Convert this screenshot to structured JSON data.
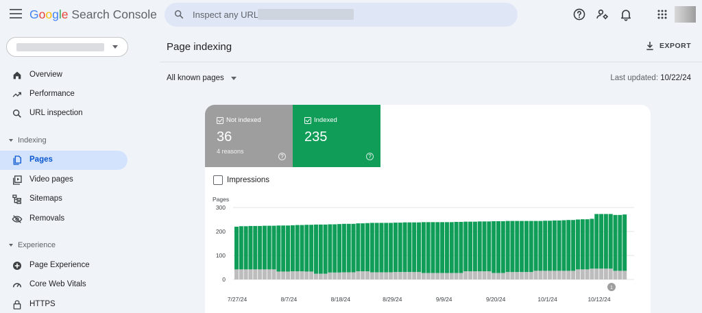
{
  "app": {
    "logo_word": [
      "G",
      "o",
      "o",
      "g",
      "l",
      "e"
    ],
    "logo_colors": [
      "#4285f4",
      "#ea4335",
      "#fbbc05",
      "#4285f4",
      "#34a853",
      "#ea4335"
    ],
    "logo_suffix": " Search Console"
  },
  "search": {
    "placeholder": "Inspect any URL in"
  },
  "sidebar": {
    "items_top": [
      {
        "label": "Overview",
        "icon": "home-icon"
      },
      {
        "label": "Performance",
        "icon": "trending-up-icon"
      },
      {
        "label": "URL inspection",
        "icon": "search-icon"
      }
    ],
    "section_indexing": "Indexing",
    "items_indexing": [
      {
        "label": "Pages",
        "icon": "pages-icon",
        "active": true
      },
      {
        "label": "Video pages",
        "icon": "video-pages-icon"
      },
      {
        "label": "Sitemaps",
        "icon": "sitemap-icon"
      },
      {
        "label": "Removals",
        "icon": "eye-off-icon"
      }
    ],
    "section_experience": "Experience",
    "items_experience": [
      {
        "label": "Page Experience",
        "icon": "page-experience-icon"
      },
      {
        "label": "Core Web Vitals",
        "icon": "gauge-icon"
      },
      {
        "label": "HTTPS",
        "icon": "lock-icon"
      }
    ]
  },
  "main": {
    "title": "Page indexing",
    "export_label": "EXPORT",
    "filter_label": "All known pages",
    "updated_prefix": "Last updated: ",
    "updated_date": "10/22/24"
  },
  "tiles": {
    "not_indexed": {
      "label": "Not indexed",
      "value": "36",
      "sub": "4 reasons"
    },
    "indexed": {
      "label": "Indexed",
      "value": "235"
    }
  },
  "impressions_label": "Impressions",
  "colors": {
    "indexed": "#0f9d58",
    "not_indexed": "#bdbdbd",
    "accent": "#0b57d0",
    "active_bg": "#d3e3fd"
  },
  "chart_data": {
    "type": "bar",
    "stacked": true,
    "ylabel": "Pages",
    "ylim": [
      0,
      300
    ],
    "yticks": [
      0,
      100,
      200,
      300
    ],
    "xtick_labels": [
      "7/27/24",
      "8/7/24",
      "8/18/24",
      "8/29/24",
      "9/9/24",
      "9/20/24",
      "10/1/24",
      "10/12/24"
    ],
    "annotation": "1",
    "series": [
      {
        "name": "Not indexed",
        "values": [
          42,
          42,
          42,
          42,
          42,
          42,
          42,
          42,
          42,
          33,
          33,
          33,
          34,
          34,
          34,
          33,
          33,
          24,
          24,
          24,
          29,
          29,
          29,
          30,
          30,
          30,
          34,
          34,
          34,
          30,
          30,
          30,
          30,
          30,
          31,
          31,
          31,
          31,
          31,
          31,
          27,
          27,
          27,
          27,
          27,
          27,
          27,
          27,
          27,
          34,
          34,
          34,
          34,
          34,
          34,
          27,
          27,
          27,
          31,
          31,
          31,
          31,
          31,
          31,
          36,
          36,
          36,
          36,
          36,
          36,
          36,
          36,
          36,
          42,
          42,
          42,
          45,
          45,
          45,
          45,
          45,
          36,
          36,
          36
        ]
      },
      {
        "name": "Indexed",
        "values": [
          178,
          180,
          180,
          181,
          181,
          181,
          182,
          182,
          182,
          192,
          192,
          192,
          192,
          193,
          193,
          195,
          195,
          205,
          205,
          205,
          201,
          201,
          202,
          202,
          202,
          202,
          200,
          200,
          201,
          206,
          206,
          206,
          206,
          206,
          206,
          206,
          207,
          207,
          207,
          207,
          212,
          212,
          212,
          212,
          212,
          212,
          212,
          213,
          213,
          207,
          207,
          207,
          208,
          208,
          208,
          216,
          216,
          216,
          213,
          213,
          213,
          213,
          213,
          213,
          208,
          208,
          209,
          209,
          210,
          210,
          211,
          212,
          212,
          208,
          209,
          209,
          208,
          228,
          228,
          228,
          228,
          233,
          233,
          235
        ]
      }
    ]
  }
}
